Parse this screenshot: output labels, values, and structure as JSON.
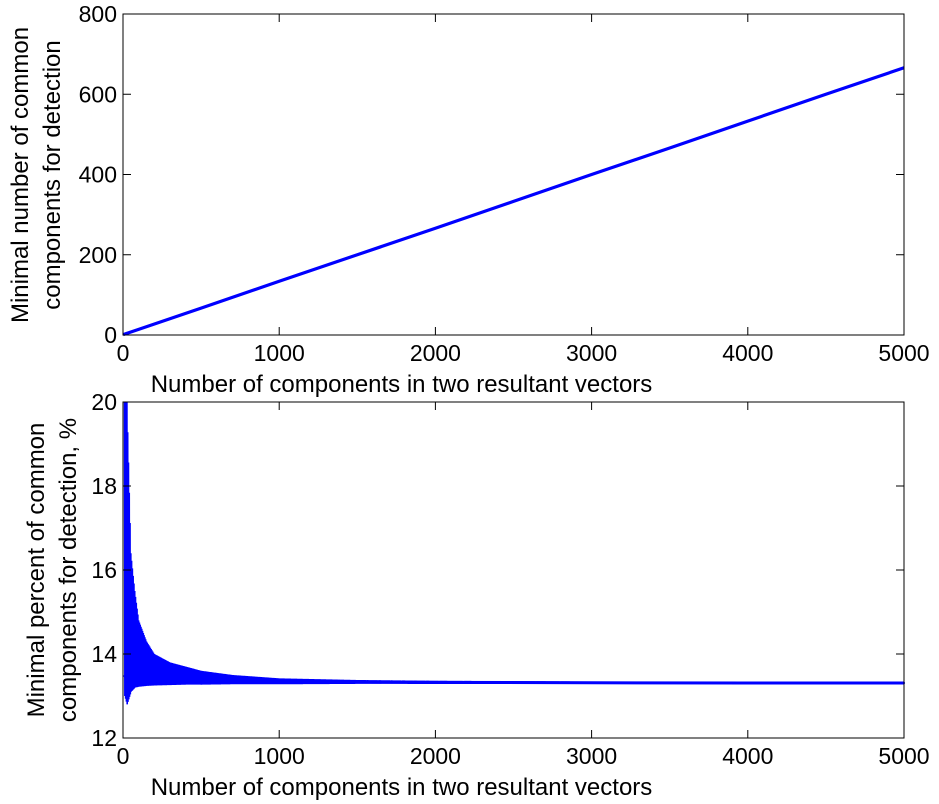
{
  "chart_data": [
    {
      "type": "line",
      "xlabel": "Number of components in two resultant vectors",
      "ylabel_lines": [
        "Minimal number of common",
        "components for detection"
      ],
      "xlim": [
        0,
        5000
      ],
      "ylim": [
        0,
        800
      ],
      "xticks": [
        0,
        1000,
        2000,
        3000,
        4000,
        5000
      ],
      "yticks": [
        0,
        200,
        400,
        600,
        800
      ],
      "grid": false,
      "series": [
        {
          "color": "#0000ff",
          "x": [
            1,
            100,
            500,
            1000,
            1500,
            2000,
            2500,
            3000,
            3500,
            4000,
            4500,
            5000
          ],
          "y": [
            1,
            14,
            67,
            134,
            200,
            266,
            333,
            400,
            466,
            533,
            600,
            666
          ]
        }
      ]
    },
    {
      "type": "line",
      "xlabel": "Number of components in two resultant vectors",
      "ylabel_lines": [
        "Minimal percent of common",
        "components for detection, %"
      ],
      "xlim": [
        0,
        5000
      ],
      "ylim": [
        12,
        20
      ],
      "xticks": [
        0,
        1000,
        2000,
        3000,
        4000,
        5000
      ],
      "yticks": [
        12,
        14,
        16,
        18,
        20
      ],
      "grid": false,
      "series": [
        {
          "color": "#0000ff",
          "x": [
            10,
            25,
            50,
            75,
            100,
            150,
            200,
            300,
            400,
            500,
            700,
            1000,
            1500,
            2000,
            3000,
            4000,
            5000
          ],
          "upper": [
            20,
            20,
            16.4,
            15.5,
            14.8,
            14.3,
            14.0,
            13.8,
            13.7,
            13.6,
            13.5,
            13.42,
            13.38,
            13.36,
            13.34,
            13.33,
            13.33
          ],
          "lower": [
            13.0,
            12.8,
            13.1,
            13.2,
            13.22,
            13.24,
            13.25,
            13.26,
            13.27,
            13.27,
            13.28,
            13.28,
            13.29,
            13.29,
            13.29,
            13.29,
            13.29
          ]
        }
      ]
    }
  ]
}
